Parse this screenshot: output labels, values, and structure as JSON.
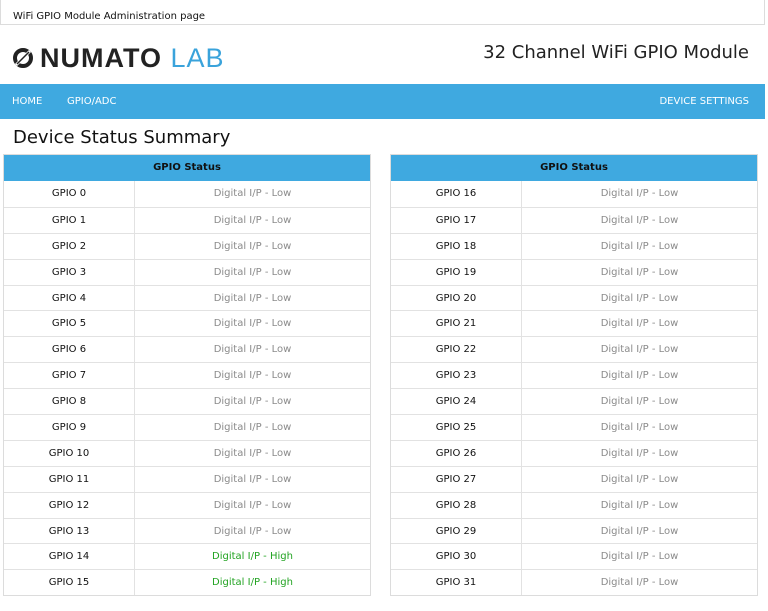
{
  "page": {
    "caption": "WiFi GPIO Module Administration page"
  },
  "header": {
    "logo_part1": "NUMATO",
    "logo_part2": "LAB",
    "module_title": "32 Channel WiFi GPIO Module"
  },
  "nav": {
    "home": "HOME",
    "gpio_adc": "GPIO/ADC",
    "device_settings": "DEVICE SETTINGS"
  },
  "section_title": "Device Status Summary",
  "colors": {
    "accent": "#3fa9e0",
    "high": "#22a322",
    "low": "#8a8a8a"
  },
  "panels": [
    {
      "header": "GPIO Status",
      "rows": [
        {
          "name": "GPIO 0",
          "status": "Digital I/P - Low",
          "level": "low"
        },
        {
          "name": "GPIO 1",
          "status": "Digital I/P - Low",
          "level": "low"
        },
        {
          "name": "GPIO 2",
          "status": "Digital I/P - Low",
          "level": "low"
        },
        {
          "name": "GPIO 3",
          "status": "Digital I/P - Low",
          "level": "low"
        },
        {
          "name": "GPIO 4",
          "status": "Digital I/P - Low",
          "level": "low"
        },
        {
          "name": "GPIO 5",
          "status": "Digital I/P - Low",
          "level": "low"
        },
        {
          "name": "GPIO 6",
          "status": "Digital I/P - Low",
          "level": "low"
        },
        {
          "name": "GPIO 7",
          "status": "Digital I/P - Low",
          "level": "low"
        },
        {
          "name": "GPIO 8",
          "status": "Digital I/P - Low",
          "level": "low"
        },
        {
          "name": "GPIO 9",
          "status": "Digital I/P - Low",
          "level": "low"
        },
        {
          "name": "GPIO 10",
          "status": "Digital I/P - Low",
          "level": "low"
        },
        {
          "name": "GPIO 11",
          "status": "Digital I/P - Low",
          "level": "low"
        },
        {
          "name": "GPIO 12",
          "status": "Digital I/P - Low",
          "level": "low"
        },
        {
          "name": "GPIO 13",
          "status": "Digital I/P - Low",
          "level": "low"
        },
        {
          "name": "GPIO 14",
          "status": "Digital I/P - High",
          "level": "high"
        },
        {
          "name": "GPIO 15",
          "status": "Digital I/P - High",
          "level": "high"
        }
      ]
    },
    {
      "header": "GPIO Status",
      "rows": [
        {
          "name": "GPIO 16",
          "status": "Digital I/P - Low",
          "level": "low"
        },
        {
          "name": "GPIO 17",
          "status": "Digital I/P - Low",
          "level": "low"
        },
        {
          "name": "GPIO 18",
          "status": "Digital I/P - Low",
          "level": "low"
        },
        {
          "name": "GPIO 19",
          "status": "Digital I/P - Low",
          "level": "low"
        },
        {
          "name": "GPIO 20",
          "status": "Digital I/P - Low",
          "level": "low"
        },
        {
          "name": "GPIO 21",
          "status": "Digital I/P - Low",
          "level": "low"
        },
        {
          "name": "GPIO 22",
          "status": "Digital I/P - Low",
          "level": "low"
        },
        {
          "name": "GPIO 23",
          "status": "Digital I/P - Low",
          "level": "low"
        },
        {
          "name": "GPIO 24",
          "status": "Digital I/P - Low",
          "level": "low"
        },
        {
          "name": "GPIO 25",
          "status": "Digital I/P - Low",
          "level": "low"
        },
        {
          "name": "GPIO 26",
          "status": "Digital I/P - Low",
          "level": "low"
        },
        {
          "name": "GPIO 27",
          "status": "Digital I/P - Low",
          "level": "low"
        },
        {
          "name": "GPIO 28",
          "status": "Digital I/P - Low",
          "level": "low"
        },
        {
          "name": "GPIO 29",
          "status": "Digital I/P - Low",
          "level": "low"
        },
        {
          "name": "GPIO 30",
          "status": "Digital I/P - Low",
          "level": "low"
        },
        {
          "name": "GPIO 31",
          "status": "Digital I/P - Low",
          "level": "low"
        }
      ]
    }
  ]
}
